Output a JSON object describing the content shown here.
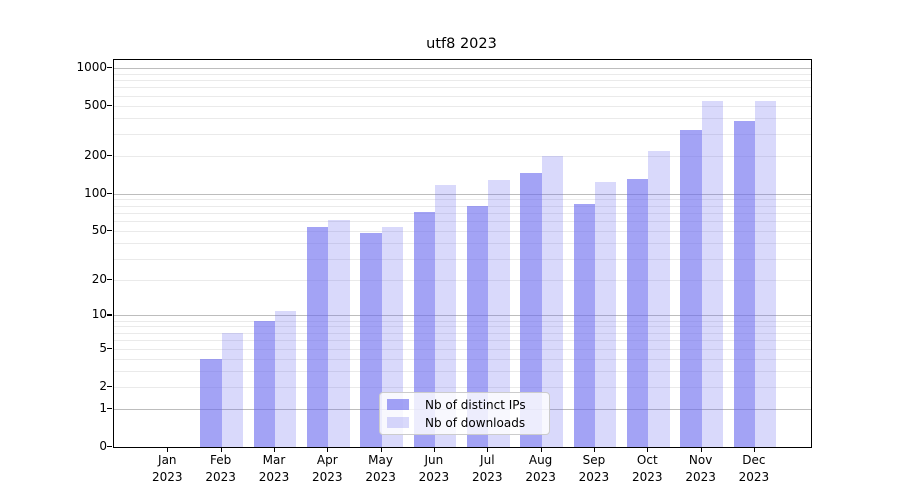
{
  "title": "utf8 2023",
  "chart_data": {
    "type": "bar",
    "title": "utf8 2023",
    "xlabel": "",
    "ylabel": "",
    "categories": [
      "Jan 2023",
      "Feb 2023",
      "Mar 2023",
      "Apr 2023",
      "May 2023",
      "Jun 2023",
      "Jul 2023",
      "Aug 2023",
      "Sep 2023",
      "Oct 2023",
      "Nov 2023",
      "Dec 2023"
    ],
    "series": [
      {
        "name": "Nb of distinct IPs",
        "color": "rgba(102,102,238,0.6)",
        "values": [
          0,
          4,
          9,
          54,
          48,
          72,
          80,
          145,
          83,
          131,
          320,
          380
        ]
      },
      {
        "name": "Nb of downloads",
        "color": "rgba(102,102,238,0.25)",
        "values": [
          0,
          7,
          11,
          62,
          54,
          118,
          128,
          200,
          124,
          218,
          550,
          550
        ]
      }
    ],
    "y_scale": "log1p",
    "ylim": [
      0,
      1152
    ],
    "y_ticks": [
      0,
      1,
      2,
      5,
      10,
      20,
      50,
      100,
      200,
      500,
      1000
    ],
    "grid": {
      "shown": true,
      "major_at": [
        1,
        10,
        100,
        1000
      ],
      "minor_multipliers": [
        2,
        3,
        4,
        5,
        6,
        7,
        8,
        9
      ],
      "major_color": "#bdbdbd",
      "minor_color": "#eaeaea"
    },
    "legend": {
      "position": "lower center",
      "entries": [
        "Nb of distinct IPs",
        "Nb of downloads"
      ]
    },
    "accent_color": "#6666ee",
    "background_color": "#ffffff"
  }
}
